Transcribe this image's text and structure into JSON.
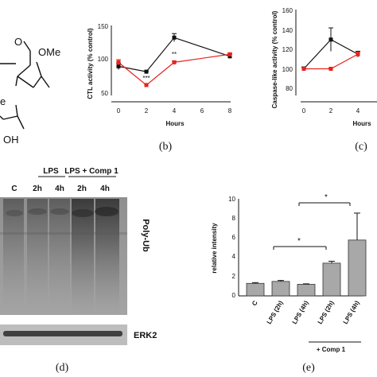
{
  "panel_a": {
    "labels": [
      "O",
      "OMe",
      "e",
      "OH"
    ]
  },
  "panel_b": {
    "caption": "(b)",
    "ylabel": "CTL activity (% control)",
    "xlabel": "Hours",
    "yticks": [
      "50",
      "100",
      "150"
    ],
    "xticks": [
      "0",
      "2",
      "4",
      "6",
      "8"
    ],
    "annotations": [
      "***",
      "**"
    ]
  },
  "panel_c": {
    "caption": "(c)",
    "ylabel": "Caspase-like activity (% control)",
    "xlabel": "Hours",
    "yticks": [
      "80",
      "100",
      "120",
      "140",
      "160"
    ],
    "xticks": [
      "0",
      "2",
      "4"
    ]
  },
  "panel_d": {
    "caption": "(d)",
    "lane_c": "C",
    "group_lps": "LPS",
    "group_lps_comp": "LPS + Comp 1",
    "lane_2h_a": "2h",
    "lane_4h_a": "4h",
    "lane_2h_b": "2h",
    "lane_4h_b": "4h",
    "label_polyub": "Poly-Ub",
    "label_erk2": "ERK2"
  },
  "panel_e": {
    "caption": "(e)",
    "ylabel": "relative intensity",
    "yticks": [
      "0",
      "2",
      "4",
      "6",
      "8",
      "10"
    ],
    "sig1": "*",
    "sig2": "*",
    "group_label": "+ Comp 1"
  },
  "chart_data": [
    {
      "type": "line",
      "xlabel": "Hours",
      "ylabel": "CTL activity (% control)",
      "ylim": [
        40,
        150
      ],
      "xlim": [
        0,
        8
      ],
      "x": [
        0,
        2,
        4,
        8
      ],
      "series": [
        {
          "color": "#111111",
          "values": [
            90,
            82,
            133,
            105
          ],
          "errors": [
            5,
            1,
            6,
            3
          ]
        },
        {
          "color": "#e8221c",
          "values": [
            96,
            62,
            96,
            108
          ],
          "errors": [
            4,
            2,
            2,
            2
          ]
        }
      ]
    },
    {
      "type": "line",
      "xlabel": "Hours",
      "ylabel": "Caspase-like activity (% control)",
      "ylim": [
        75,
        165
      ],
      "x": [
        0,
        2,
        4
      ],
      "series": [
        {
          "color": "#111111",
          "values": [
            100,
            130,
            115
          ],
          "errors": [
            2,
            12,
            3
          ]
        },
        {
          "color": "#e8221c",
          "values": [
            100,
            100,
            115
          ],
          "errors": [
            1,
            1,
            2
          ]
        }
      ]
    },
    {
      "type": "bar",
      "categories": [
        "C",
        "LPS (2h)",
        "LPS (4h)",
        "LPS (2h)",
        "LPS (4h)"
      ],
      "values": [
        1.3,
        1.5,
        1.2,
        3.4,
        5.8
      ],
      "errors": [
        0.08,
        0.1,
        0.05,
        0.2,
        2.8
      ],
      "ylabel": "relative intensity",
      "ylim": [
        0,
        10
      ]
    }
  ]
}
